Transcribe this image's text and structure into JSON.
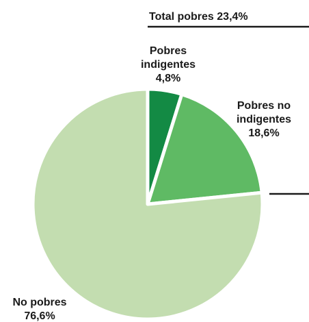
{
  "chart_data": {
    "type": "pie",
    "slices": [
      {
        "label": [
          "Pobres",
          "indigentes"
        ],
        "value": 4.8,
        "value_label": "4,8%",
        "color": "#138a44"
      },
      {
        "label": [
          "Pobres no",
          "indigentes"
        ],
        "value": 18.6,
        "value_label": "18,6%",
        "color": "#5fba64"
      },
      {
        "label": [
          "No pobres"
        ],
        "value": 76.6,
        "value_label": "76,6%",
        "color": "#c3ddb0"
      }
    ],
    "annotation": "Total pobres 23,4%",
    "start_angle_deg": 0,
    "direction": "clockwise",
    "separator_color": "#ffffff"
  }
}
